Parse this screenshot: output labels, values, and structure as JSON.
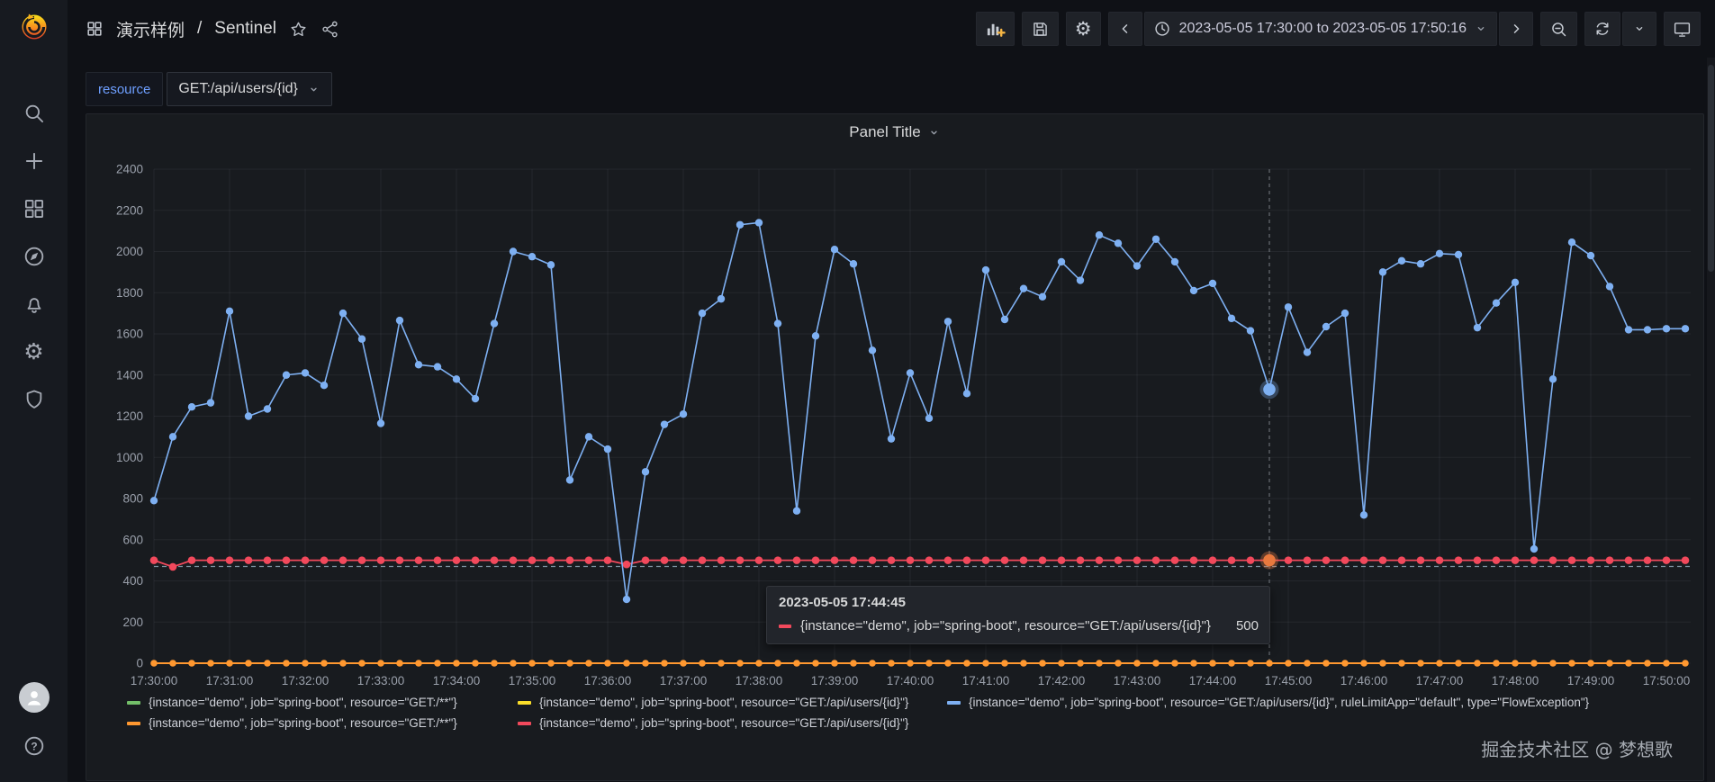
{
  "header": {
    "breadcrumb_primary": "演示样例",
    "breadcrumb_separator": "/",
    "breadcrumb_secondary": "Sentinel",
    "time_range": "2023-05-05 17:30:00 to 2023-05-05 17:50:16",
    "toolbar_icons": [
      "apps-icon",
      "star-icon",
      "share-icon",
      "add-panel-icon",
      "save-icon",
      "settings-icon",
      "chevron-left-icon",
      "clock-icon",
      "chevron-down-icon",
      "chevron-right-icon",
      "zoom-out-icon",
      "refresh-icon",
      "kiosk-icon"
    ]
  },
  "sidebar": {
    "icons": [
      "grafana-logo",
      "search-icon",
      "plus-icon",
      "apps-icon",
      "compass-icon",
      "bell-icon",
      "gear-icon",
      "shield-icon",
      "avatar",
      "help-icon"
    ]
  },
  "variables": {
    "resource_label": "resource",
    "resource_value": "GET:/api/users/{id}"
  },
  "panel": {
    "title": "Panel Title"
  },
  "tooltip": {
    "time": "2023-05-05 17:44:45",
    "value": "500"
  },
  "watermark": "掘金技术社区 @ 梦想歌",
  "chart_data": {
    "type": "line",
    "x_start": "17:30:00",
    "x_end": "17:50:16",
    "x_step_seconds": 15,
    "point_count": 82,
    "x_ticks": [
      "17:30:00",
      "17:31:00",
      "17:32:00",
      "17:33:00",
      "17:34:00",
      "17:35:00",
      "17:36:00",
      "17:37:00",
      "17:38:00",
      "17:39:00",
      "17:40:00",
      "17:41:00",
      "17:42:00",
      "17:43:00",
      "17:44:00",
      "17:45:00",
      "17:46:00",
      "17:47:00",
      "17:48:00",
      "17:49:00",
      "17:50:00"
    ],
    "ylim": [
      0,
      2400
    ],
    "y_tick_step": 200,
    "grid": true,
    "legend_position": "bottom",
    "threshold": 470,
    "threshold_color": "#8FA8B8",
    "crosshair_color": "#777C83",
    "hover_index": 59,
    "hover_time": "2023-05-05 17:44:45",
    "hover_point_color": "#E8793E",
    "series": [
      {
        "name": "{instance=\"demo\", job=\"spring-boot\", resource=\"GET:/**\"}",
        "color": "#73BF69",
        "values_constant": 0
      },
      {
        "name": "{instance=\"demo\", job=\"spring-boot\", resource=\"GET:/api/users/{id}\"}",
        "color": "#FADE2A",
        "values_constant": 0
      },
      {
        "name": "{instance=\"demo\", job=\"spring-boot\", resource=\"GET:/api/users/{id}\", ruleLimitApp=\"default\", type=\"FlowException\"}",
        "color": "#7EB0F2",
        "values": [
          790,
          1100,
          1245,
          1265,
          1710,
          1200,
          1235,
          1400,
          1410,
          1350,
          1700,
          1575,
          1165,
          1665,
          1450,
          1440,
          1380,
          1285,
          1650,
          2000,
          1975,
          1935,
          890,
          1100,
          1040,
          310,
          930,
          1160,
          1210,
          1700,
          1770,
          2130,
          2140,
          1650,
          740,
          1590,
          2010,
          1940,
          1520,
          1090,
          1410,
          1190,
          1660,
          1310,
          1910,
          1670,
          1820,
          1780,
          1950,
          1860,
          2080,
          2040,
          1930,
          2060,
          1950,
          1810,
          1845,
          1675,
          1615,
          1330,
          1730,
          1510,
          1635,
          1700,
          720,
          1900,
          1955,
          1940,
          1990,
          1985,
          1630,
          1750,
          1850,
          555,
          1380,
          2045,
          1980,
          1830,
          1620,
          1620,
          1625,
          1625
        ]
      },
      {
        "name": "{instance=\"demo\", job=\"spring-boot\", resource=\"GET:/**\"}",
        "color": "#FF9830",
        "values_constant": 0
      },
      {
        "name": "{instance=\"demo\", job=\"spring-boot\", resource=\"GET:/api/users/{id}\"}",
        "color": "#F2495C",
        "values": [
          500,
          468,
          500,
          500,
          500,
          500,
          500,
          500,
          500,
          500,
          500,
          500,
          500,
          500,
          500,
          500,
          500,
          500,
          500,
          500,
          500,
          500,
          500,
          500,
          500,
          480,
          500,
          500,
          500,
          500,
          500,
          500,
          500,
          500,
          500,
          500,
          500,
          500,
          500,
          500,
          500,
          500,
          500,
          500,
          500,
          500,
          500,
          500,
          500,
          500,
          500,
          500,
          500,
          500,
          500,
          500,
          500,
          500,
          500,
          500,
          500,
          500,
          500,
          500,
          500,
          500,
          500,
          500,
          500,
          500,
          500,
          500,
          500,
          500,
          500,
          500,
          500,
          500,
          500,
          500,
          500,
          500
        ]
      }
    ]
  }
}
